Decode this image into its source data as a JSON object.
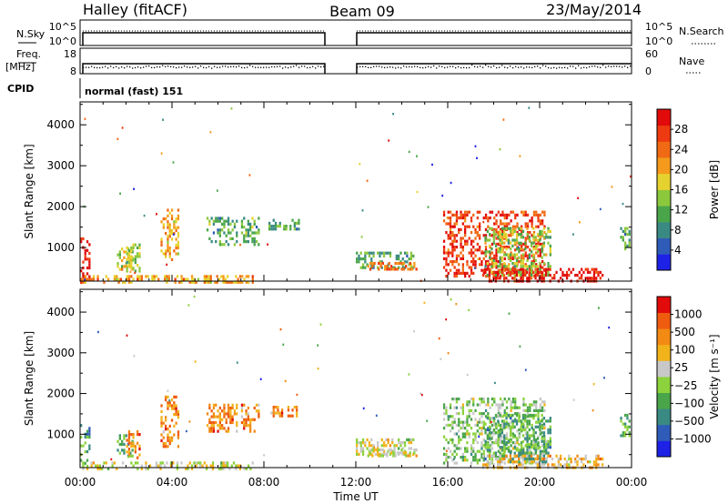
{
  "header": {
    "title": "Halley (fitACF)",
    "beam": "Beam 09",
    "date": "23/May/2014"
  },
  "strip_panels": {
    "nsky_label": "N.Sky",
    "nsearch_label": "N.Search",
    "nsky_ticks": [
      "10^5",
      "10^0"
    ],
    "nsearch_ticks": [
      "10^5",
      "10^0"
    ],
    "freq_label": "Freq.",
    "freq_unit": "[MHz]",
    "freq_ticks": [
      "18",
      "8"
    ],
    "nave_label": "Nave",
    "nave_ticks": [
      "60",
      "0"
    ],
    "cpid_label": "CPID",
    "cpid_value": "normal (fast) 151"
  },
  "colors": {
    "background": "#ffffff",
    "frame": "#000000"
  },
  "chart_data": [
    {
      "type": "heatmap",
      "name": "power",
      "ylabel": "Slant Range [km]",
      "xlabel": "",
      "y_ticks": [
        1000,
        2000,
        3000,
        4000
      ],
      "ylim": [
        180,
        4560
      ],
      "xlim": [
        0,
        24
      ],
      "colorbar_label": "Power [dB]",
      "colorbar_ticks": [
        "4",
        "8",
        "12",
        "16",
        "20",
        "24",
        "28"
      ],
      "colorbar_colors": [
        "#1e22e6",
        "#2f5cb8",
        "#3a8a84",
        "#4aa54a",
        "#8cc83c",
        "#e6d22e",
        "#f59a1c",
        "#f06a14",
        "#ee3a10",
        "#e20a0a"
      ],
      "echo_regions": [
        {
          "t0": 0.0,
          "t1": 0.45,
          "r0": 180,
          "r1": 1250,
          "dominant": 9
        },
        {
          "t0": 0.0,
          "t1": 7.5,
          "r0": 180,
          "r1": 330,
          "dominant": 6
        },
        {
          "t0": 1.6,
          "t1": 2.3,
          "r0": 450,
          "r1": 1000,
          "dominant": 5
        },
        {
          "t0": 2.0,
          "t1": 2.6,
          "r0": 400,
          "r1": 1100,
          "dominant": 4
        },
        {
          "t0": 3.5,
          "t1": 4.3,
          "r0": 700,
          "r1": 1950,
          "dominant": 6
        },
        {
          "t0": 5.5,
          "t1": 6.8,
          "r0": 1050,
          "r1": 1750,
          "dominant": 3
        },
        {
          "t0": 7.0,
          "t1": 7.8,
          "r0": 1050,
          "r1": 1750,
          "dominant": 3
        },
        {
          "t0": 8.2,
          "t1": 9.5,
          "r0": 1450,
          "r1": 1700,
          "dominant": 3
        },
        {
          "t0": 12.0,
          "t1": 14.5,
          "r0": 500,
          "r1": 900,
          "dominant": 3
        },
        {
          "t0": 12.5,
          "t1": 14.6,
          "r0": 450,
          "r1": 650,
          "dominant": 7
        },
        {
          "t0": 15.8,
          "t1": 20.2,
          "r0": 300,
          "r1": 1900,
          "dominant": 8
        },
        {
          "t0": 17.6,
          "t1": 20.5,
          "r0": 300,
          "r1": 1500,
          "dominant": 4
        },
        {
          "t0": 17.5,
          "t1": 22.7,
          "r0": 180,
          "r1": 500,
          "dominant": 9
        },
        {
          "t0": 23.5,
          "t1": 23.9,
          "r0": 950,
          "r1": 1500,
          "dominant": 3
        }
      ]
    },
    {
      "type": "heatmap",
      "name": "velocity",
      "ylabel": "Slant Range [km]",
      "xlabel": "Time UT",
      "x_ticks": [
        "00:00",
        "04:00",
        "08:00",
        "12:00",
        "16:00",
        "20:00",
        "00:00"
      ],
      "y_ticks": [
        1000,
        2000,
        3000,
        4000
      ],
      "ylim": [
        180,
        4560
      ],
      "xlim": [
        0,
        24
      ],
      "colorbar_label": "Velocity [m s⁻¹]",
      "colorbar_ticks": [
        "1000",
        "500",
        "100",
        "25",
        "−25",
        "−100",
        "−500",
        "−1000"
      ],
      "colorbar_colors": [
        "#1e22e6",
        "#2f5cb8",
        "#3a8a84",
        "#4aa54a",
        "#8cd23c",
        "#c8c8c8",
        "#f2b21a",
        "#f28a14",
        "#ef5c10",
        "#e20a0a"
      ],
      "echo_regions": [
        {
          "t0": 0.0,
          "t1": 0.45,
          "r0": 180,
          "r1": 1250,
          "dominant": 3
        },
        {
          "t0": 0.0,
          "t1": 7.5,
          "r0": 180,
          "r1": 330,
          "dominant": 5
        },
        {
          "t0": 1.6,
          "t1": 2.3,
          "r0": 450,
          "r1": 1000,
          "dominant": 3
        },
        {
          "t0": 2.0,
          "t1": 2.6,
          "r0": 400,
          "r1": 1100,
          "dominant": 7
        },
        {
          "t0": 3.5,
          "t1": 4.3,
          "r0": 700,
          "r1": 1950,
          "dominant": 7
        },
        {
          "t0": 5.5,
          "t1": 6.8,
          "r0": 1050,
          "r1": 1750,
          "dominant": 7
        },
        {
          "t0": 7.0,
          "t1": 7.8,
          "r0": 1050,
          "r1": 1750,
          "dominant": 7
        },
        {
          "t0": 8.2,
          "t1": 9.5,
          "r0": 1450,
          "r1": 1700,
          "dominant": 7
        },
        {
          "t0": 12.0,
          "t1": 14.5,
          "r0": 500,
          "r1": 900,
          "dominant": 5
        },
        {
          "t0": 12.5,
          "t1": 14.6,
          "r0": 450,
          "r1": 650,
          "dominant": 5
        },
        {
          "t0": 15.8,
          "t1": 20.2,
          "r0": 300,
          "r1": 1900,
          "dominant": 4
        },
        {
          "t0": 17.6,
          "t1": 20.5,
          "r0": 300,
          "r1": 1500,
          "dominant": 3
        },
        {
          "t0": 17.5,
          "t1": 22.7,
          "r0": 180,
          "r1": 500,
          "dominant": 6
        },
        {
          "t0": 23.5,
          "t1": 23.9,
          "r0": 950,
          "r1": 1500,
          "dominant": 3
        }
      ]
    }
  ]
}
